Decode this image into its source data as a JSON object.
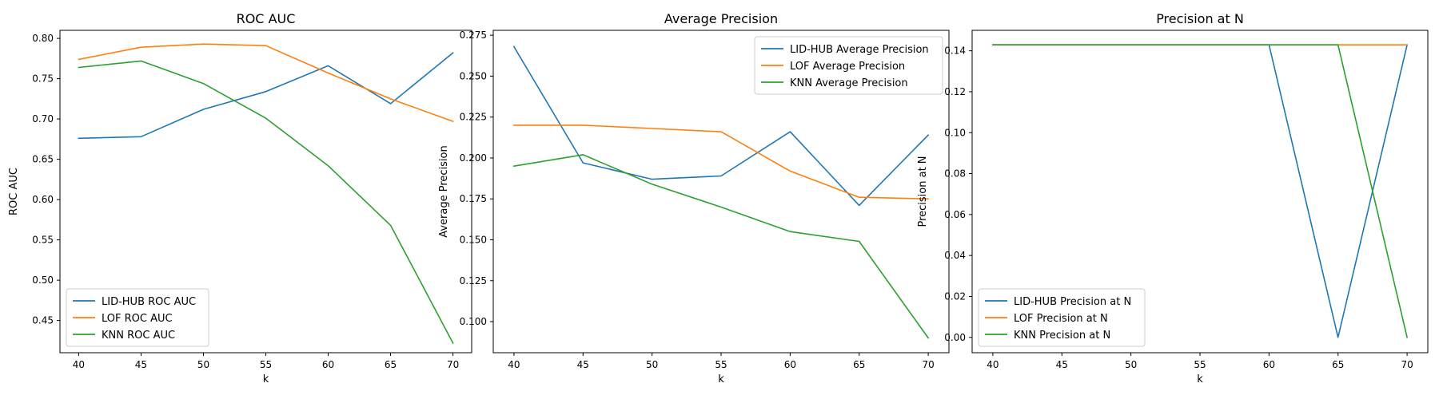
{
  "chart_data": [
    {
      "type": "line",
      "title": "ROC AUC",
      "xlabel": "k",
      "ylabel": "ROC AUC",
      "x": [
        40,
        45,
        50,
        55,
        60,
        65,
        70
      ],
      "xlim": [
        38.5,
        71.5
      ],
      "ylim": [
        0.41,
        0.81
      ],
      "xticks": [
        40,
        45,
        50,
        55,
        60,
        65,
        70
      ],
      "yticks": [
        0.45,
        0.5,
        0.55,
        0.6,
        0.65,
        0.7,
        0.75,
        0.8
      ],
      "ytick_labels": [
        "0.45",
        "0.50",
        "0.55",
        "0.60",
        "0.65",
        "0.70",
        "0.75",
        "0.80"
      ],
      "legend_loc": "lower-left",
      "grid": false,
      "series": [
        {
          "name": "LID-HUB ROC AUC",
          "color": "#1f77b4",
          "values": [
            0.676,
            0.678,
            0.712,
            0.734,
            0.766,
            0.719,
            0.782
          ]
        },
        {
          "name": "LOF ROC AUC",
          "color": "#ff7f0e",
          "values": [
            0.774,
            0.789,
            0.793,
            0.791,
            0.757,
            0.725,
            0.697
          ]
        },
        {
          "name": "KNN ROC AUC",
          "color": "#2ca02c",
          "values": [
            0.764,
            0.772,
            0.744,
            0.701,
            0.642,
            0.568,
            0.422
          ]
        }
      ]
    },
    {
      "type": "line",
      "title": "Average Precision",
      "xlabel": "k",
      "ylabel": "Average Precision",
      "x": [
        40,
        45,
        50,
        55,
        60,
        65,
        70
      ],
      "xlim": [
        38.5,
        71.5
      ],
      "ylim": [
        0.081,
        0.278
      ],
      "xticks": [
        40,
        45,
        50,
        55,
        60,
        65,
        70
      ],
      "yticks": [
        0.1,
        0.125,
        0.15,
        0.175,
        0.2,
        0.225,
        0.25,
        0.275
      ],
      "ytick_labels": [
        "0.100",
        "0.125",
        "0.150",
        "0.175",
        "0.200",
        "0.225",
        "0.250",
        "0.275"
      ],
      "legend_loc": "upper-right",
      "grid": false,
      "series": [
        {
          "name": "LID-HUB Average Precision",
          "color": "#1f77b4",
          "values": [
            0.268,
            0.197,
            0.187,
            0.189,
            0.216,
            0.171,
            0.214
          ]
        },
        {
          "name": "LOF Average Precision",
          "color": "#ff7f0e",
          "values": [
            0.22,
            0.22,
            0.218,
            0.216,
            0.192,
            0.176,
            0.175
          ]
        },
        {
          "name": "KNN Average Precision",
          "color": "#2ca02c",
          "values": [
            0.195,
            0.202,
            0.184,
            0.17,
            0.155,
            0.149,
            0.09
          ]
        }
      ]
    },
    {
      "type": "line",
      "title": "Precision at N",
      "xlabel": "k",
      "ylabel": "Precision at N",
      "x": [
        40,
        45,
        50,
        55,
        60,
        65,
        70
      ],
      "xlim": [
        38.5,
        71.5
      ],
      "ylim": [
        -0.0075,
        0.15
      ],
      "xticks": [
        40,
        45,
        50,
        55,
        60,
        65,
        70
      ],
      "yticks": [
        0,
        0.02,
        0.04,
        0.06,
        0.08,
        0.1,
        0.12,
        0.14
      ],
      "ytick_labels": [
        "0.00",
        "0.02",
        "0.04",
        "0.06",
        "0.08",
        "0.10",
        "0.12",
        "0.14"
      ],
      "legend_loc": "lower-left",
      "grid": false,
      "series": [
        {
          "name": "LID-HUB Precision at N",
          "color": "#1f77b4",
          "values": [
            0.1429,
            0.1429,
            0.1429,
            0.1429,
            0.1429,
            0.0,
            0.1429
          ]
        },
        {
          "name": "LOF Precision at N",
          "color": "#ff7f0e",
          "values": [
            0.1429,
            0.1429,
            0.1429,
            0.1429,
            0.1429,
            0.1429,
            0.1429
          ]
        },
        {
          "name": "KNN Precision at N",
          "color": "#2ca02c",
          "values": [
            0.1429,
            0.1429,
            0.1429,
            0.1429,
            0.1429,
            0.1429,
            0.0
          ]
        }
      ]
    }
  ]
}
